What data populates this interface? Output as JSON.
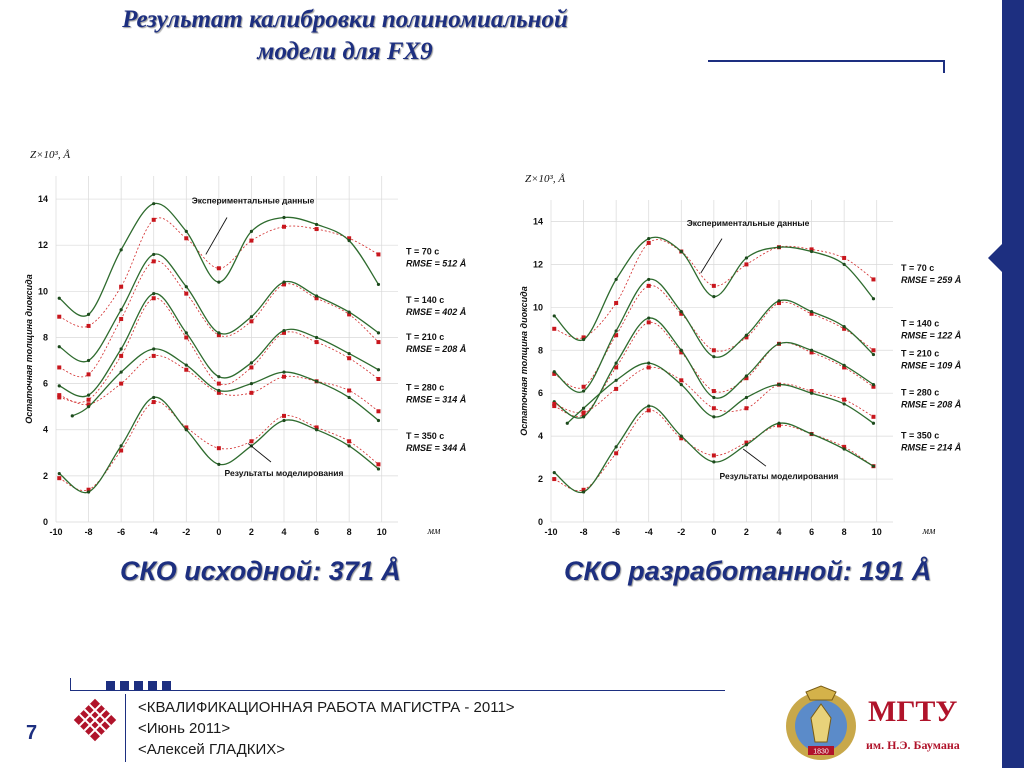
{
  "slide": {
    "title_line1": "Результат калибровки полиномиальной",
    "title_line2": "модели для FX9",
    "page_number": "7",
    "accent_color": "#1d2f80",
    "sko_left": "СКО исходной:  371 Å",
    "sko_right": "СКО разработанной: 191 Å",
    "footer": {
      "line1": "<КВАЛИФИКАЦИОННАЯ РАБОТА МАГИСТРА - 2011>",
      "line2": "<Июнь 2011>",
      "line3": "<Алексей ГЛАДКИХ>"
    },
    "university": {
      "name": "МГТУ",
      "subtitle": "им. Н.Э. Баумана",
      "emblem_year": "1830"
    }
  },
  "chart_data": [
    {
      "type": "line",
      "y_title": "Остаточная толщина диоксида",
      "y_unit": "Z×10³, Å",
      "x_unit": "мм",
      "xlim": [
        -10,
        11
      ],
      "ylim": [
        0,
        15
      ],
      "x_ticks": [
        -10,
        -8,
        -6,
        -4,
        -2,
        0,
        2,
        4,
        6,
        8,
        10
      ],
      "y_ticks": [
        0,
        2,
        4,
        6,
        8,
        10,
        12,
        14
      ],
      "grid": true,
      "legend": [
        "Экспериментальные данные",
        "Результаты моделирования"
      ],
      "annotations": {
        "experimental": "Экспериментальные данные",
        "model": "Результаты моделирования"
      },
      "curves": [
        {
          "label": "T = 70 с",
          "rmse": "RMSE = 512 Å",
          "exp": [
            [
              -9.8,
              8.9
            ],
            [
              -8,
              8.5
            ],
            [
              -6,
              10.2
            ],
            [
              -4,
              13.1
            ],
            [
              -2,
              12.3
            ],
            [
              0,
              11
            ],
            [
              2,
              12.2
            ],
            [
              4,
              12.8
            ],
            [
              6,
              12.7
            ],
            [
              8,
              12.3
            ],
            [
              9.8,
              11.6
            ]
          ],
          "model": [
            [
              -9.8,
              9.7
            ],
            [
              -8,
              9.0
            ],
            [
              -6,
              11.8
            ],
            [
              -4,
              13.8
            ],
            [
              -2,
              12.6
            ],
            [
              0,
              10.4
            ],
            [
              2,
              12.6
            ],
            [
              4,
              13.2
            ],
            [
              6,
              12.9
            ],
            [
              8,
              12.2
            ],
            [
              9.8,
              10.3
            ]
          ]
        },
        {
          "label": "T = 140 с",
          "rmse": "RMSE = 402 Å",
          "exp": [
            [
              -9.8,
              6.7
            ],
            [
              -8,
              6.4
            ],
            [
              -6,
              8.8
            ],
            [
              -4,
              11.3
            ],
            [
              -2,
              9.9
            ],
            [
              0,
              8.1
            ],
            [
              2,
              8.7
            ],
            [
              4,
              10.3
            ],
            [
              6,
              9.7
            ],
            [
              8,
              9.0
            ],
            [
              9.8,
              7.8
            ]
          ],
          "model": [
            [
              -9.8,
              7.6
            ],
            [
              -8,
              7.0
            ],
            [
              -6,
              9.2
            ],
            [
              -4,
              11.6
            ],
            [
              -2,
              10.2
            ],
            [
              0,
              8.2
            ],
            [
              2,
              8.9
            ],
            [
              4,
              10.4
            ],
            [
              6,
              9.8
            ],
            [
              8,
              9.1
            ],
            [
              9.8,
              8.2
            ]
          ]
        },
        {
          "label": "T = 210 с",
          "rmse": "RMSE = 208 Å",
          "exp": [
            [
              -9.8,
              5.4
            ],
            [
              -8,
              5.3
            ],
            [
              -6,
              7.2
            ],
            [
              -4,
              9.7
            ],
            [
              -2,
              8.0
            ],
            [
              0,
              6.0
            ],
            [
              2,
              6.7
            ],
            [
              4,
              8.2
            ],
            [
              6,
              7.8
            ],
            [
              8,
              7.1
            ],
            [
              9.8,
              6.2
            ]
          ],
          "model": [
            [
              -9.8,
              5.9
            ],
            [
              -8,
              5.5
            ],
            [
              -6,
              7.5
            ],
            [
              -4,
              9.9
            ],
            [
              -2,
              8.2
            ],
            [
              0,
              6.3
            ],
            [
              2,
              6.9
            ],
            [
              4,
              8.3
            ],
            [
              6,
              8.0
            ],
            [
              8,
              7.3
            ],
            [
              9.8,
              6.6
            ]
          ]
        },
        {
          "label": "T = 280 с",
          "rmse": "RMSE = 314 Å",
          "exp": [
            [
              -9.8,
              5.5
            ],
            [
              -8,
              5.1
            ],
            [
              -6,
              6.0
            ],
            [
              -4,
              7.2
            ],
            [
              -2,
              6.6
            ],
            [
              0,
              5.6
            ],
            [
              2,
              5.6
            ],
            [
              4,
              6.3
            ],
            [
              6,
              6.1
            ],
            [
              8,
              5.7
            ],
            [
              9.8,
              4.8
            ]
          ],
          "model": [
            [
              -9,
              4.6
            ],
            [
              -8,
              5.0
            ],
            [
              -6,
              6.5
            ],
            [
              -4,
              7.5
            ],
            [
              -2,
              6.8
            ],
            [
              0,
              5.7
            ],
            [
              2,
              6.0
            ],
            [
              4,
              6.5
            ],
            [
              6,
              6.1
            ],
            [
              8,
              5.4
            ],
            [
              9.8,
              4.4
            ]
          ]
        },
        {
          "label": "T = 350 с",
          "rmse": "RMSE = 344 Å",
          "exp": [
            [
              -9.8,
              1.9
            ],
            [
              -8,
              1.4
            ],
            [
              -6,
              3.1
            ],
            [
              -4,
              5.2
            ],
            [
              -2,
              4.1
            ],
            [
              0,
              3.2
            ],
            [
              2,
              3.5
            ],
            [
              4,
              4.6
            ],
            [
              6,
              4.1
            ],
            [
              8,
              3.5
            ],
            [
              9.8,
              2.5
            ]
          ],
          "model": [
            [
              -9.8,
              2.1
            ],
            [
              -8,
              1.3
            ],
            [
              -6,
              3.3
            ],
            [
              -4,
              5.4
            ],
            [
              -2,
              4.0
            ],
            [
              0,
              2.5
            ],
            [
              2,
              3.3
            ],
            [
              4,
              4.4
            ],
            [
              6,
              4.0
            ],
            [
              8,
              3.3
            ],
            [
              9.8,
              2.3
            ]
          ]
        }
      ]
    },
    {
      "type": "line",
      "y_title": "Остаточная толщина диоксида",
      "y_unit": "Z×10³, Å",
      "x_unit": "мм",
      "xlim": [
        -10,
        11
      ],
      "ylim": [
        0,
        15
      ],
      "x_ticks": [
        -10,
        -8,
        -6,
        -4,
        -2,
        0,
        2,
        4,
        6,
        8,
        10
      ],
      "y_ticks": [
        0,
        2,
        4,
        6,
        8,
        10,
        12,
        14
      ],
      "grid": true,
      "legend": [
        "Экспериментальные данные",
        "Результаты моделирования"
      ],
      "annotations": {
        "experimental": "Экспериментальные данные",
        "model": "Результаты моделирования"
      },
      "curves": [
        {
          "label": "T = 70 с",
          "rmse": "RMSE = 259 Å",
          "exp": [
            [
              -9.8,
              9.0
            ],
            [
              -8,
              8.6
            ],
            [
              -6,
              10.2
            ],
            [
              -4,
              13.0
            ],
            [
              -2,
              12.6
            ],
            [
              0,
              11.0
            ],
            [
              2,
              12.0
            ],
            [
              4,
              12.8
            ],
            [
              6,
              12.7
            ],
            [
              8,
              12.3
            ],
            [
              9.8,
              11.3
            ]
          ],
          "model": [
            [
              -9.8,
              9.6
            ],
            [
              -8,
              8.5
            ],
            [
              -6,
              11.3
            ],
            [
              -4,
              13.2
            ],
            [
              -2,
              12.6
            ],
            [
              0,
              10.5
            ],
            [
              2,
              12.3
            ],
            [
              4,
              12.8
            ],
            [
              6,
              12.6
            ],
            [
              8,
              12.0
            ],
            [
              9.8,
              10.4
            ]
          ]
        },
        {
          "label": "T = 140 с",
          "rmse": "RMSE = 122 Å",
          "exp": [
            [
              -9.8,
              6.9
            ],
            [
              -8,
              6.3
            ],
            [
              -6,
              8.7
            ],
            [
              -4,
              11.0
            ],
            [
              -2,
              9.7
            ],
            [
              0,
              8.0
            ],
            [
              2,
              8.6
            ],
            [
              4,
              10.2
            ],
            [
              6,
              9.7
            ],
            [
              8,
              9.0
            ],
            [
              9.8,
              8.0
            ]
          ],
          "model": [
            [
              -9.8,
              7.0
            ],
            [
              -8,
              6.1
            ],
            [
              -6,
              8.9
            ],
            [
              -4,
              11.3
            ],
            [
              -2,
              9.8
            ],
            [
              0,
              7.7
            ],
            [
              2,
              8.7
            ],
            [
              4,
              10.3
            ],
            [
              6,
              9.8
            ],
            [
              8,
              9.1
            ],
            [
              9.8,
              7.8
            ]
          ]
        },
        {
          "label": "T = 210 с",
          "rmse": "RMSE = 109 Å",
          "exp": [
            [
              -9.8,
              5.4
            ],
            [
              -8,
              5.0
            ],
            [
              -6,
              7.2
            ],
            [
              -4,
              9.3
            ],
            [
              -2,
              7.9
            ],
            [
              0,
              6.1
            ],
            [
              2,
              6.7
            ],
            [
              4,
              8.3
            ],
            [
              6,
              7.9
            ],
            [
              8,
              7.2
            ],
            [
              9.8,
              6.3
            ]
          ],
          "model": [
            [
              -9.8,
              5.6
            ],
            [
              -8,
              4.9
            ],
            [
              -6,
              7.4
            ],
            [
              -4,
              9.5
            ],
            [
              -2,
              8.0
            ],
            [
              0,
              5.8
            ],
            [
              2,
              6.8
            ],
            [
              4,
              8.3
            ],
            [
              6,
              8.0
            ],
            [
              8,
              7.3
            ],
            [
              9.8,
              6.4
            ]
          ]
        },
        {
          "label": "T = 280 с",
          "rmse": "RMSE = 208 Å",
          "exp": [
            [
              -9.8,
              5.5
            ],
            [
              -8,
              5.1
            ],
            [
              -6,
              6.2
            ],
            [
              -4,
              7.2
            ],
            [
              -2,
              6.6
            ],
            [
              0,
              5.3
            ],
            [
              2,
              5.3
            ],
            [
              4,
              6.4
            ],
            [
              6,
              6.1
            ],
            [
              8,
              5.7
            ],
            [
              9.8,
              4.9
            ]
          ],
          "model": [
            [
              -9,
              4.6
            ],
            [
              -8,
              5.3
            ],
            [
              -6,
              6.6
            ],
            [
              -4,
              7.4
            ],
            [
              -2,
              6.4
            ],
            [
              0,
              4.9
            ],
            [
              2,
              5.8
            ],
            [
              4,
              6.4
            ],
            [
              6,
              6.0
            ],
            [
              8,
              5.5
            ],
            [
              9.8,
              4.6
            ]
          ]
        },
        {
          "label": "T = 350 с",
          "rmse": "RMSE = 214 Å",
          "exp": [
            [
              -9.8,
              2.0
            ],
            [
              -8,
              1.5
            ],
            [
              -6,
              3.2
            ],
            [
              -4,
              5.2
            ],
            [
              -2,
              3.9
            ],
            [
              0,
              3.1
            ],
            [
              2,
              3.7
            ],
            [
              4,
              4.5
            ],
            [
              6,
              4.1
            ],
            [
              8,
              3.5
            ],
            [
              9.8,
              2.6
            ]
          ],
          "model": [
            [
              -9.8,
              2.3
            ],
            [
              -8,
              1.4
            ],
            [
              -6,
              3.5
            ],
            [
              -4,
              5.4
            ],
            [
              -2,
              4.0
            ],
            [
              0,
              2.8
            ],
            [
              2,
              3.6
            ],
            [
              4,
              4.6
            ],
            [
              6,
              4.1
            ],
            [
              8,
              3.4
            ],
            [
              9.8,
              2.6
            ]
          ]
        }
      ]
    }
  ]
}
